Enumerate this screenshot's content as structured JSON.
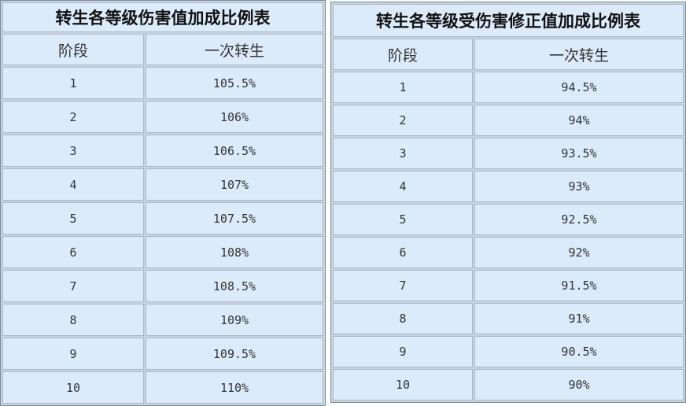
{
  "tables": [
    {
      "title": "转生各等级伤害值加成比例表",
      "headers": [
        "阶段",
        "一次转生"
      ],
      "rows": [
        [
          "1",
          "105.5%"
        ],
        [
          "2",
          "106%"
        ],
        [
          "3",
          "106.5%"
        ],
        [
          "4",
          "107%"
        ],
        [
          "5",
          "107.5%"
        ],
        [
          "6",
          "108%"
        ],
        [
          "7",
          "108.5%"
        ],
        [
          "8",
          "109%"
        ],
        [
          "9",
          "109.5%"
        ],
        [
          "10",
          "110%"
        ]
      ]
    },
    {
      "title": "转生各等级受伤害修正值加成比例表",
      "headers": [
        "阶段",
        "一次转生"
      ],
      "rows": [
        [
          "1",
          "94.5%"
        ],
        [
          "2",
          "94%"
        ],
        [
          "3",
          "93.5%"
        ],
        [
          "4",
          "93%"
        ],
        [
          "5",
          "92.5%"
        ],
        [
          "6",
          "92%"
        ],
        [
          "7",
          "91.5%"
        ],
        [
          "8",
          "91%"
        ],
        [
          "9",
          "90.5%"
        ],
        [
          "10",
          "90%"
        ]
      ]
    }
  ]
}
